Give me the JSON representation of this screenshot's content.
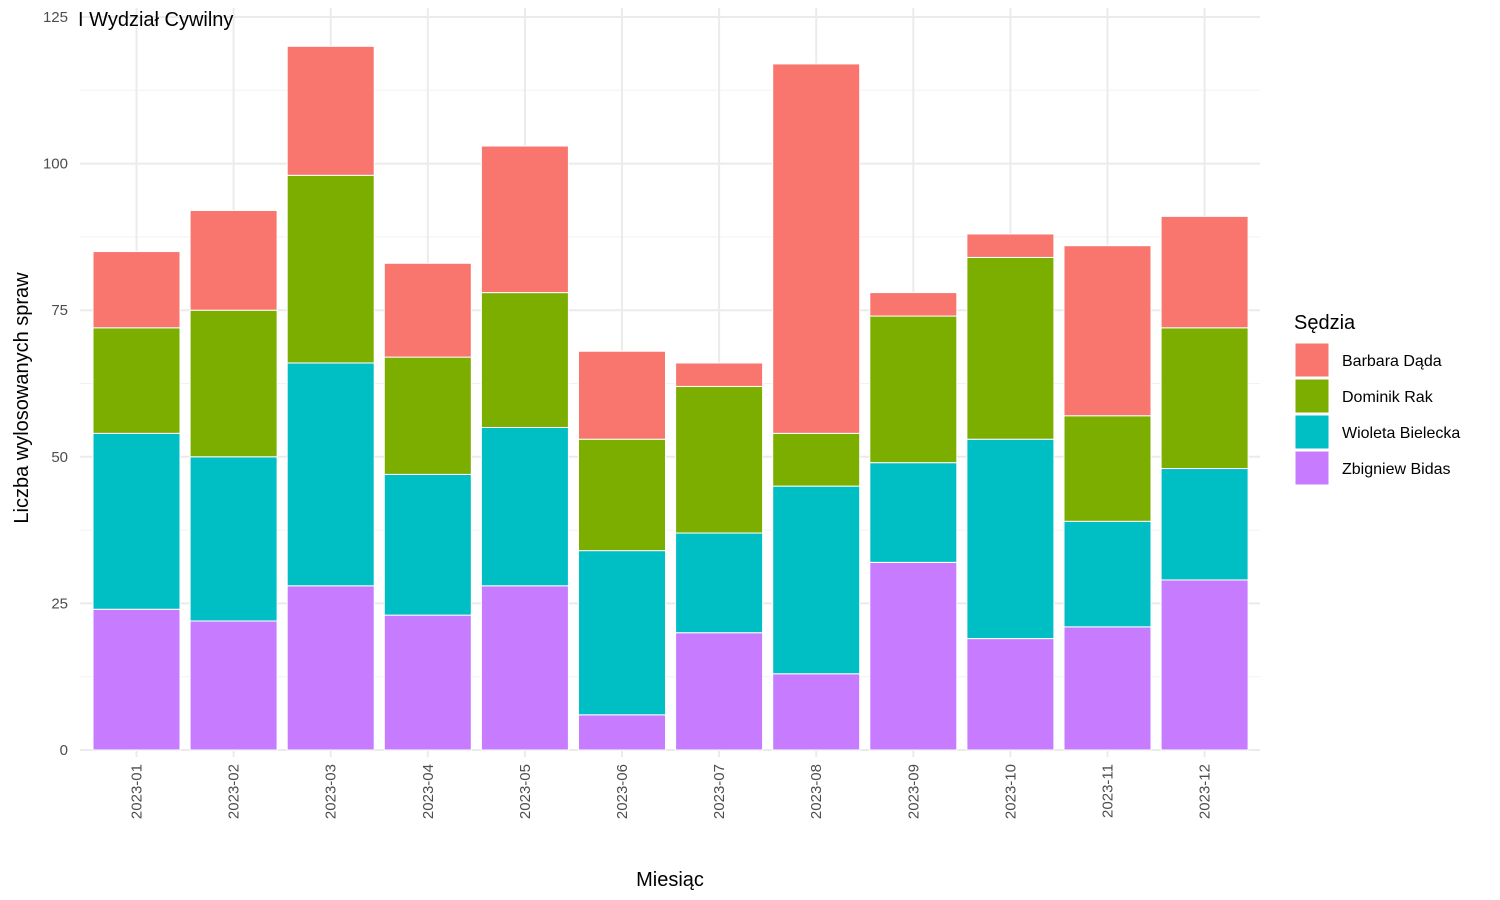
{
  "chart_data": {
    "type": "bar",
    "stacked": true,
    "title": "I Wydział Cywilny",
    "xlabel": "Miesiąc",
    "ylabel": "Liczba wylosowanych spraw",
    "ylim": [
      0,
      125
    ],
    "yticks": [
      0,
      25,
      50,
      75,
      100,
      125
    ],
    "grid": true,
    "legend_title": "Sędzia",
    "legend_position": "right",
    "categories": [
      "2023-01",
      "2023-02",
      "2023-03",
      "2023-04",
      "2023-05",
      "2023-06",
      "2023-07",
      "2023-08",
      "2023-09",
      "2023-10",
      "2023-11",
      "2023-12"
    ],
    "series": [
      {
        "name": "Zbigniew Bidas",
        "color": "#C77CFF",
        "values": [
          24,
          22,
          28,
          23,
          28,
          6,
          20,
          13,
          32,
          19,
          21,
          29
        ]
      },
      {
        "name": "Wioleta Bielecka",
        "color": "#00BFC4",
        "values": [
          30,
          28,
          38,
          24,
          27,
          28,
          17,
          32,
          17,
          34,
          18,
          19
        ]
      },
      {
        "name": "Dominik Rak",
        "color": "#7CAE00",
        "values": [
          18,
          25,
          32,
          20,
          23,
          19,
          25,
          9,
          25,
          31,
          18,
          24
        ]
      },
      {
        "name": "Barbara Dąda",
        "color": "#F8766D",
        "values": [
          13,
          17,
          22,
          16,
          25,
          15,
          4,
          63,
          4,
          4,
          29,
          19
        ]
      }
    ],
    "legend_order": [
      "Barbara Dąda",
      "Dominik Rak",
      "Wioleta Bielecka",
      "Zbigniew Bidas"
    ]
  }
}
